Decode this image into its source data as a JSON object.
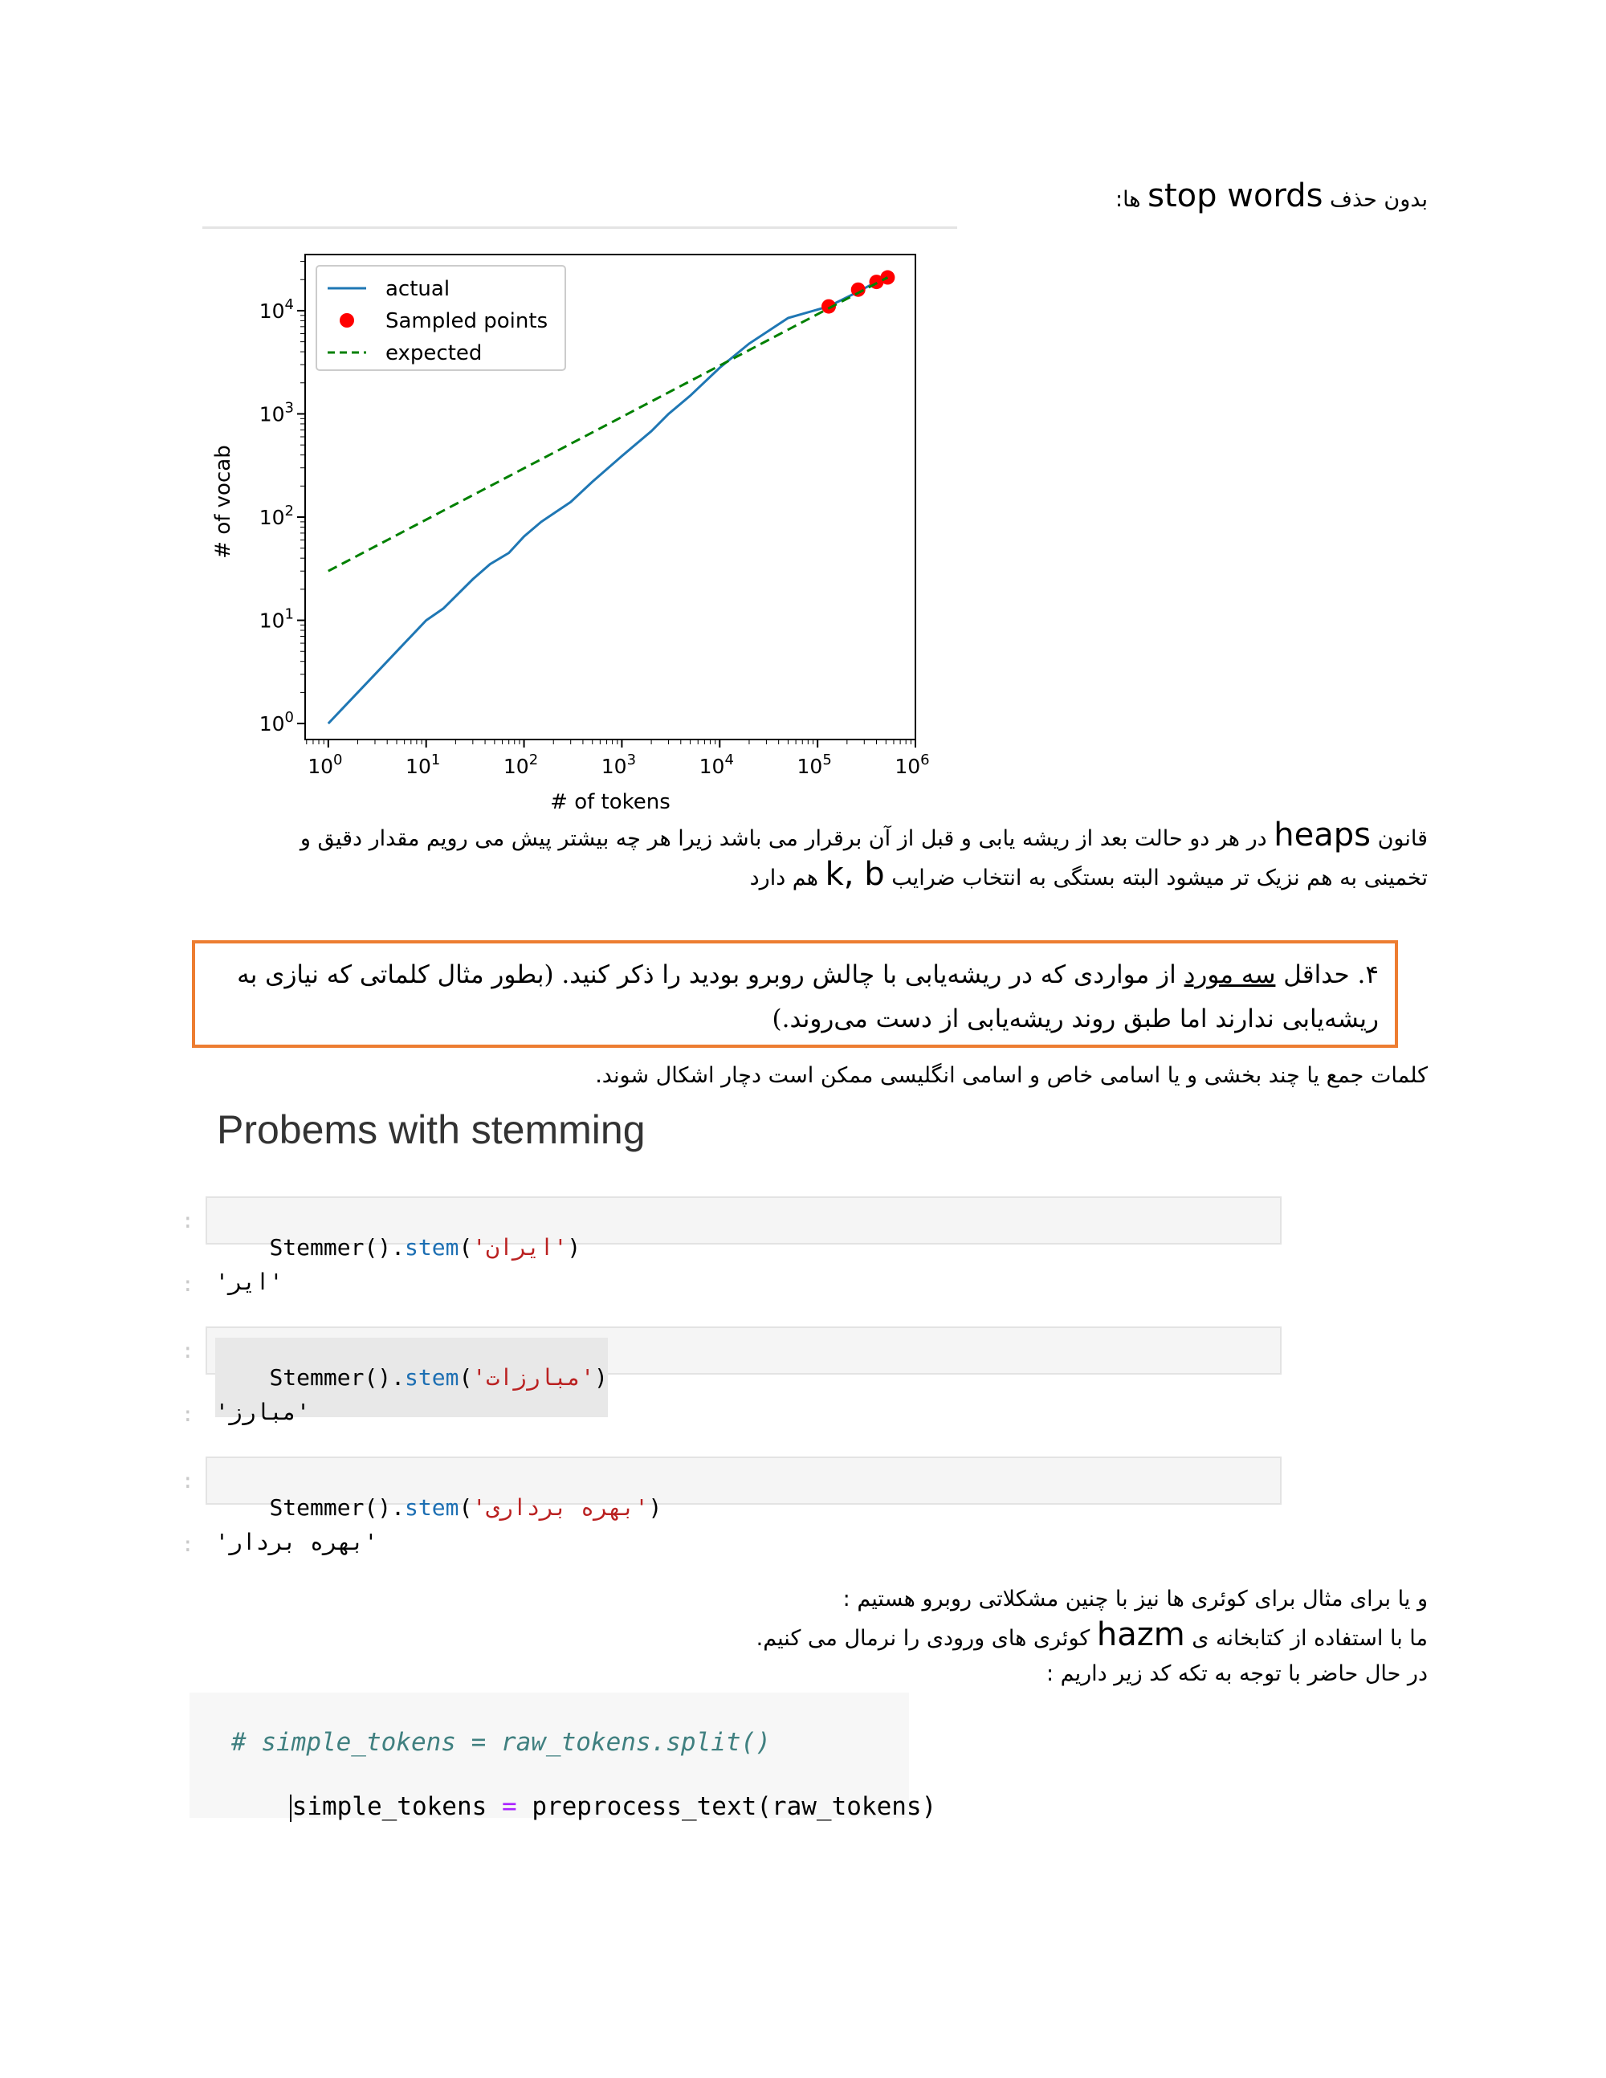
{
  "top_text": {
    "prefix": "بدون حذف",
    "latin": "stop words",
    "suffix": "ها:"
  },
  "chart_data": {
    "type": "line",
    "xscale": "log",
    "yscale": "log",
    "xlabel": "# of tokens",
    "ylabel": "# of vocab",
    "xlim": [
      0.58,
      1000000
    ],
    "ylim": [
      0.7,
      35000
    ],
    "x_ticks": [
      "10^0",
      "10^1",
      "10^2",
      "10^3",
      "10^4",
      "10^5",
      "10^6"
    ],
    "y_ticks": [
      "10^0",
      "10^1",
      "10^2",
      "10^3",
      "10^4"
    ],
    "legend_position": "top-left",
    "series": [
      {
        "name": "actual",
        "style": "solid",
        "color": "#1f77b4",
        "points": [
          [
            1,
            1
          ],
          [
            3,
            3
          ],
          [
            10,
            10
          ],
          [
            15,
            13
          ],
          [
            30,
            25
          ],
          [
            45,
            35
          ],
          [
            70,
            45
          ],
          [
            100,
            65
          ],
          [
            150,
            90
          ],
          [
            300,
            140
          ],
          [
            500,
            220
          ],
          [
            1000,
            390
          ],
          [
            2000,
            680
          ],
          [
            3000,
            1000
          ],
          [
            5000,
            1500
          ],
          [
            10000,
            2800
          ],
          [
            20000,
            4800
          ],
          [
            50000,
            8500
          ],
          [
            130000,
            11000
          ],
          [
            250000,
            15000
          ],
          [
            400000,
            19000
          ],
          [
            520000,
            21000
          ]
        ]
      },
      {
        "name": "Sampled points",
        "style": "marker",
        "color": "#ff0000",
        "points": [
          [
            130000,
            11000
          ],
          [
            260000,
            16000
          ],
          [
            400000,
            19000
          ],
          [
            520000,
            21000
          ]
        ]
      },
      {
        "name": "expected",
        "style": "dashed",
        "color": "#008000",
        "points": [
          [
            1,
            30
          ],
          [
            520000,
            21000
          ]
        ]
      }
    ]
  },
  "heaps_para": {
    "line1_start": "قانون",
    "latin": "heaps",
    "line1_rest": "در هر دو حالت بعد از ریشه یابی و قبل از آن برقرار می باشد زیرا هر چه بیشتر پیش می رویم مقدار دقیق و",
    "line2_start": "تخمینی به هم نزیک تر میشود البته بستگی به انتخاب ضرایب",
    "latin2": "k, b",
    "line2_end": "هم دارد"
  },
  "question": {
    "number": "۴. حداقل",
    "underlined": "سه مورد",
    "rest": "از مواردی که در ریشه‌یابی با چالش روبرو بودید را ذکر کنید. (بطور مثال کلماتی که نیازی به ریشه‌یابی ندارند اما طبق روند ریشه‌یابی از دست می‌روند.)"
  },
  "answer_line": "کلمات جمع یا چند بخشی و یا اسامی خاص و اسامی انگلیسی ممکن است دچار اشکال شوند.",
  "heading": "Probems with stemming",
  "cells": [
    {
      "fn": "Stemmer().",
      "meth": "stem",
      "open": "(",
      "arg": "'ایران'",
      "close": ")",
      "output": "'ایر'"
    },
    {
      "fn": "Stemmer().",
      "meth": "stem",
      "open": "(",
      "arg": "'مبارزات'",
      "close": ")",
      "output": "'مبارز'"
    },
    {
      "fn": "Stemmer().",
      "meth": "stem",
      "open": "(",
      "arg": "'بهره برداری'",
      "close": ")",
      "output": "'بهره بردار'"
    }
  ],
  "query_lines": {
    "line1": "و یا برای مثال برای کوئری ها نیز با چنین مشکلاتی روبرو هستیم :",
    "line2_start": "ما با استفاده از کتابخانه ی",
    "latin": "hazm",
    "line2_end": "کوئری های ورودی را نرمال می کنیم.",
    "line3": "در حال حاضر با توجه به تکه کد زیر داریم :"
  },
  "code": {
    "comment": "# simple_tokens = raw_tokens.split()",
    "var": "simple_tokens",
    "eq": "=",
    "call": "preprocess_text(raw_tokens)"
  }
}
